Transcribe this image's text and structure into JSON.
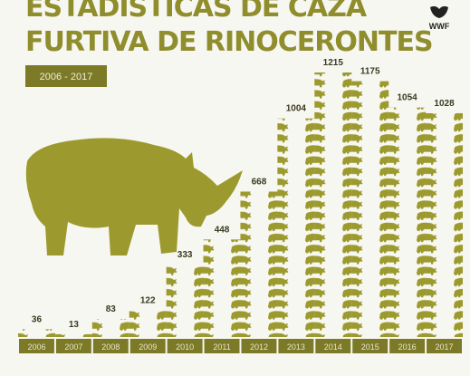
{
  "chart_data": {
    "type": "bar",
    "title": [
      "ESTADÍSTICAS DE CAZA",
      "FURTIVA DE RINOCERONTES"
    ],
    "subtitle": "2006 - 2017",
    "logo": "WWF",
    "categories": [
      "2006",
      "2007",
      "2008",
      "2009",
      "2010",
      "2011",
      "2012",
      "2013",
      "2014",
      "2015",
      "2016",
      "2017"
    ],
    "values": [
      36,
      13,
      83,
      122,
      333,
      448,
      668,
      1004,
      1215,
      1175,
      1054,
      1028
    ],
    "color": "#9c9a2e"
  }
}
